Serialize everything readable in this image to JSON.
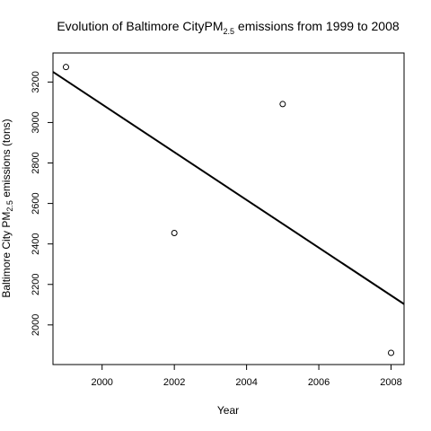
{
  "chart_data": {
    "type": "scatter",
    "title": {
      "prefix": "Evolution of Baltimore CityPM",
      "subscript": "2.5",
      "suffix": " emissions from 1999 to 2008"
    },
    "xlabel": "Year",
    "ylabel": {
      "prefix": "Baltimore City PM",
      "subscript": "2.5",
      "suffix": " emissions (tons)"
    },
    "x_ticks": [
      2000,
      2002,
      2004,
      2006,
      2008
    ],
    "y_ticks": [
      2000,
      2200,
      2400,
      2600,
      2800,
      3000,
      3200
    ],
    "xlim": [
      1998.64,
      2008.36
    ],
    "ylim": [
      1804.08,
      3343.52
    ],
    "points": [
      {
        "x": 1999,
        "y": 3274
      },
      {
        "x": 2002,
        "y": 2454
      },
      {
        "x": 2005,
        "y": 3091
      },
      {
        "x": 2008,
        "y": 1862
      }
    ],
    "trend_line": {
      "intercept": 3250,
      "slope": -118,
      "x_origin": 1998.64
    },
    "grid": false,
    "colors": {
      "axis": "#000000",
      "points": "#000000",
      "line": "#000000"
    }
  }
}
